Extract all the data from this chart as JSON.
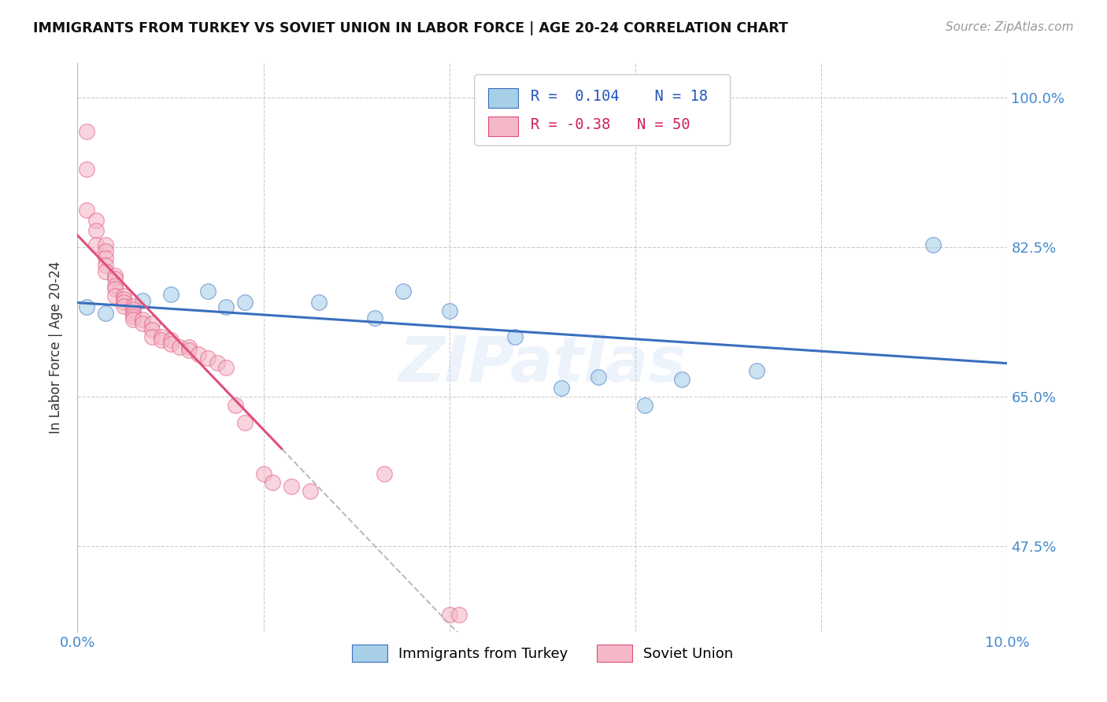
{
  "title": "IMMIGRANTS FROM TURKEY VS SOVIET UNION IN LABOR FORCE | AGE 20-24 CORRELATION CHART",
  "source": "Source: ZipAtlas.com",
  "ylabel": "In Labor Force | Age 20-24",
  "xlim": [
    0.0,
    0.1
  ],
  "ylim": [
    0.375,
    1.04
  ],
  "yticks": [
    0.475,
    0.65,
    0.825,
    1.0
  ],
  "ytick_labels": [
    "47.5%",
    "65.0%",
    "82.5%",
    "100.0%"
  ],
  "blue_R": 0.104,
  "blue_N": 18,
  "pink_R": -0.38,
  "pink_N": 50,
  "blue_color": "#a8cfe8",
  "pink_color": "#f4b8c8",
  "blue_line_color": "#3a6fbf",
  "pink_line_color": "#e0507a",
  "axis_color": "#4488cc",
  "grid_color": "#cccccc",
  "blue_points_x": [
    0.001,
    0.003,
    0.007,
    0.01,
    0.014,
    0.016,
    0.018,
    0.026,
    0.032,
    0.035,
    0.04,
    0.047,
    0.052,
    0.056,
    0.061,
    0.065,
    0.073,
    0.092
  ],
  "blue_points_y": [
    0.755,
    0.748,
    0.762,
    0.77,
    0.773,
    0.755,
    0.76,
    0.76,
    0.742,
    0.773,
    0.75,
    0.72,
    0.66,
    0.673,
    0.64,
    0.67,
    0.68,
    0.828
  ],
  "pink_points_x": [
    0.001,
    0.001,
    0.001,
    0.002,
    0.002,
    0.002,
    0.003,
    0.003,
    0.003,
    0.003,
    0.003,
    0.004,
    0.004,
    0.004,
    0.004,
    0.004,
    0.005,
    0.005,
    0.005,
    0.005,
    0.006,
    0.006,
    0.006,
    0.006,
    0.006,
    0.007,
    0.007,
    0.008,
    0.008,
    0.008,
    0.009,
    0.009,
    0.01,
    0.01,
    0.011,
    0.012,
    0.012,
    0.013,
    0.014,
    0.015,
    0.016,
    0.017,
    0.018,
    0.02,
    0.021,
    0.023,
    0.025,
    0.033,
    0.04,
    0.041
  ],
  "pink_points_y": [
    0.96,
    0.916,
    0.868,
    0.856,
    0.844,
    0.828,
    0.828,
    0.82,
    0.812,
    0.804,
    0.796,
    0.792,
    0.788,
    0.78,
    0.776,
    0.768,
    0.768,
    0.764,
    0.76,
    0.756,
    0.756,
    0.752,
    0.748,
    0.744,
    0.74,
    0.74,
    0.736,
    0.736,
    0.728,
    0.72,
    0.72,
    0.716,
    0.716,
    0.712,
    0.708,
    0.708,
    0.704,
    0.7,
    0.695,
    0.69,
    0.684,
    0.64,
    0.62,
    0.56,
    0.55,
    0.545,
    0.54,
    0.56,
    0.395,
    0.395
  ],
  "watermark_text": "ZIPatlas",
  "legend_label_blue": "Immigrants from Turkey",
  "legend_label_pink": "Soviet Union",
  "pink_line_solid_end_x": 0.022,
  "pink_line_dash_end_x": 0.05
}
